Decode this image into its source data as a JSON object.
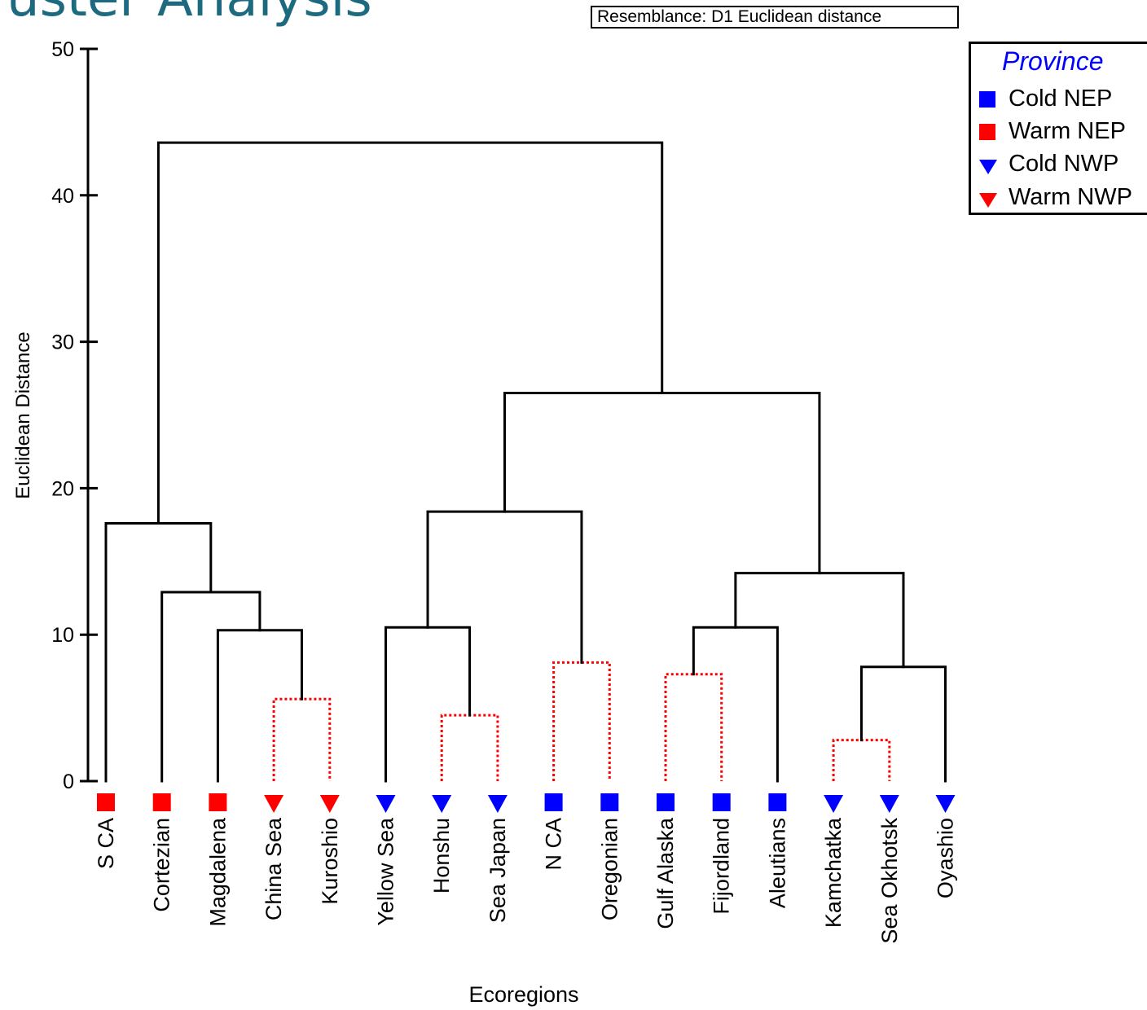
{
  "page": {
    "title": "uster Analysis",
    "resemblance": "Resemblance: D1 Euclidean distance"
  },
  "legend": {
    "title": "Province",
    "items": [
      {
        "label": "Cold NEP",
        "marker": "square",
        "color": "#0000ff"
      },
      {
        "label": "Warm NEP",
        "marker": "square",
        "color": "#ff0000"
      },
      {
        "label": "Cold NWP",
        "marker": "triangle-down",
        "color": "#0000ff"
      },
      {
        "label": "Warm NWP",
        "marker": "triangle-down",
        "color": "#ff0000"
      }
    ]
  },
  "chart_data": {
    "type": "dendrogram",
    "title": "",
    "xlabel": "Ecoregions",
    "ylabel": "Euclidean Distance",
    "ylim": [
      0,
      50
    ],
    "yticks": [
      0,
      10,
      20,
      30,
      40,
      50
    ],
    "leaves": [
      {
        "label": "S CA",
        "province": "Warm NEP"
      },
      {
        "label": "Cortezian",
        "province": "Warm NEP"
      },
      {
        "label": "Magdalena",
        "province": "Warm NEP"
      },
      {
        "label": "China Sea",
        "province": "Warm NWP"
      },
      {
        "label": "Kuroshio",
        "province": "Warm NWP"
      },
      {
        "label": "Yellow Sea",
        "province": "Cold NWP"
      },
      {
        "label": "Honshu",
        "province": "Cold NWP"
      },
      {
        "label": "Sea Japan",
        "province": "Cold NWP"
      },
      {
        "label": "N CA",
        "province": "Cold NEP"
      },
      {
        "label": "Oregonian",
        "province": "Cold NEP"
      },
      {
        "label": "Gulf Alaska",
        "province": "Cold NEP"
      },
      {
        "label": "Fijordland",
        "province": "Cold NEP"
      },
      {
        "label": "Aleutians",
        "province": "Cold NEP"
      },
      {
        "label": "Kamchatka",
        "province": "Cold NWP"
      },
      {
        "label": "Sea Okhotsk",
        "province": "Cold NWP"
      },
      {
        "label": "Oyashio",
        "province": "Cold NWP"
      }
    ],
    "merges": [
      {
        "id": "m1",
        "left": 3,
        "right": 4,
        "height": 5.6,
        "dotted": true
      },
      {
        "id": "m2",
        "left": 2,
        "right": "m1",
        "height": 10.3,
        "dotted": false
      },
      {
        "id": "m3",
        "left": 1,
        "right": "m2",
        "height": 12.9,
        "dotted": false
      },
      {
        "id": "m4",
        "left": 0,
        "right": "m3",
        "height": 17.6,
        "dotted": false
      },
      {
        "id": "m5",
        "left": 6,
        "right": 7,
        "height": 4.5,
        "dotted": true
      },
      {
        "id": "m6",
        "left": 5,
        "right": "m5",
        "height": 10.5,
        "dotted": false
      },
      {
        "id": "m7",
        "left": 8,
        "right": 9,
        "height": 8.1,
        "dotted": true
      },
      {
        "id": "m8",
        "left": "m6",
        "right": "m7",
        "height": 18.4,
        "dotted": false
      },
      {
        "id": "m9",
        "left": 10,
        "right": 11,
        "height": 7.3,
        "dotted": true
      },
      {
        "id": "m10",
        "left": "m9",
        "right": 12,
        "height": 10.5,
        "dotted": false
      },
      {
        "id": "m11",
        "left": 13,
        "right": 14,
        "height": 2.8,
        "dotted": true
      },
      {
        "id": "m12",
        "left": "m11",
        "right": 15,
        "height": 7.8,
        "dotted": false
      },
      {
        "id": "m13",
        "left": "m10",
        "right": "m12",
        "height": 14.2,
        "dotted": false
      },
      {
        "id": "m14",
        "left": "m8",
        "right": "m13",
        "height": 26.5,
        "dotted": false
      },
      {
        "id": "m15",
        "left": "m4",
        "right": "m14",
        "height": 43.6,
        "dotted": false
      }
    ],
    "grid": false,
    "legend_position": "top-right",
    "colors": {
      "solid": "#000000",
      "dotted": "#ff0000",
      "cold": "#0000ff",
      "warm": "#ff0000"
    }
  }
}
